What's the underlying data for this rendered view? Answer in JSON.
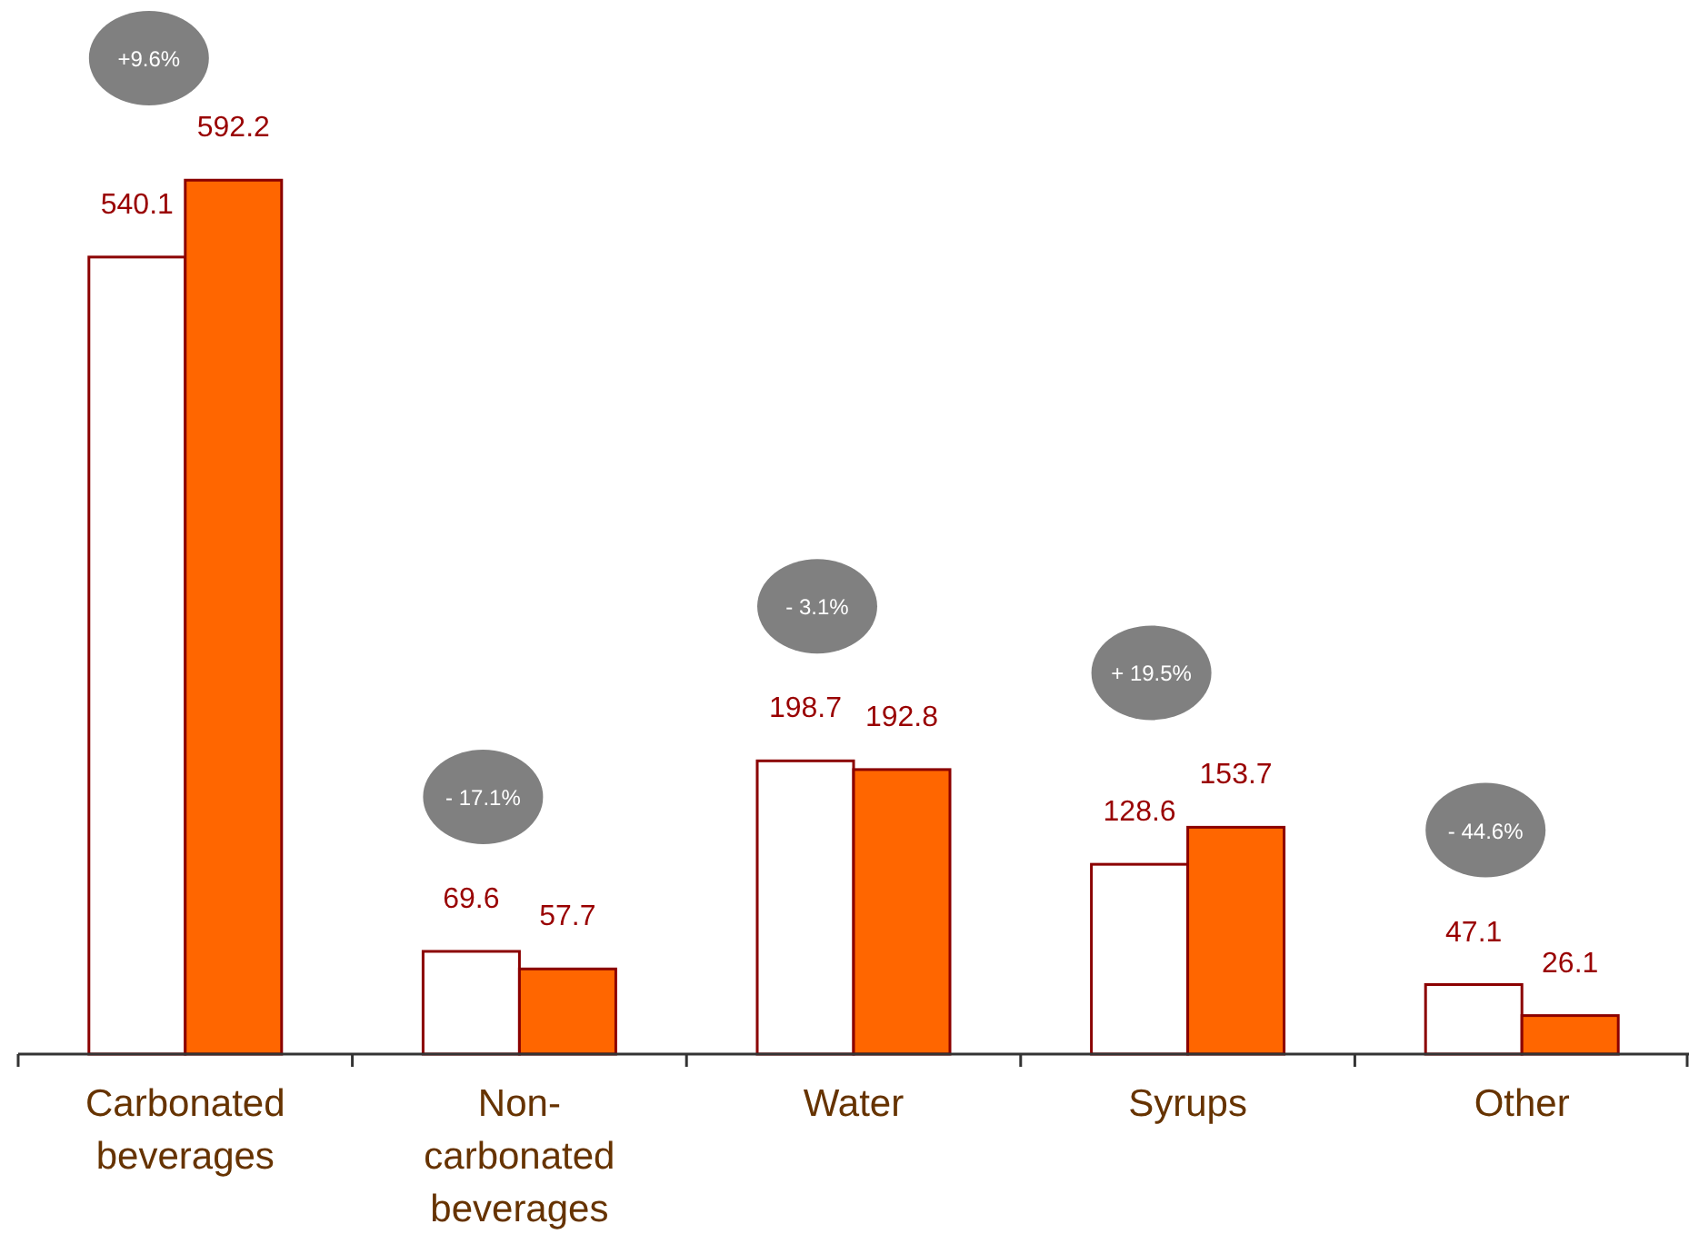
{
  "chart_data": {
    "type": "bar",
    "categories": [
      "Carbonated\nbeverages",
      "Non-\ncarbonated\nbeverages",
      "Water",
      "Syrups",
      "Other"
    ],
    "series": [
      {
        "color": "#ffffff",
        "values": [
          540.1,
          69.6,
          198.7,
          128.6,
          47.1
        ]
      },
      {
        "color": "#ff6600",
        "values": [
          592.2,
          57.7,
          192.8,
          153.7,
          26.1
        ]
      }
    ],
    "data_labels": true,
    "tick_labels": "x",
    "annotations": [
      "+9.6%",
      "- 17.1%",
      "- 3.1%",
      "+ 19.5%",
      "- 44.6%"
    ]
  }
}
